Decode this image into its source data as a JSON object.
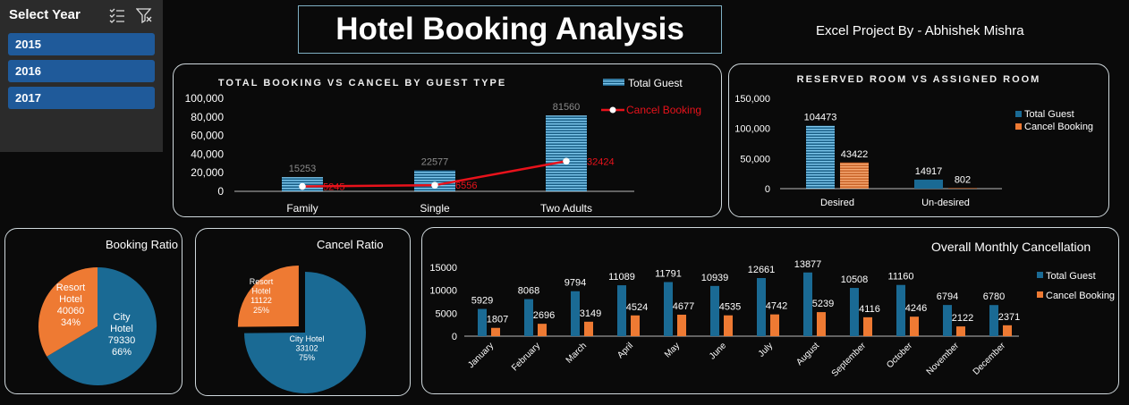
{
  "slicer": {
    "title": "Select Year",
    "years": [
      "2015",
      "2016",
      "2017"
    ]
  },
  "header": {
    "title": "Hotel Booking Analysis",
    "author": "Excel Project By -  Abhishek Mishra"
  },
  "colors": {
    "total_guest": "#1a6a94",
    "cancel_booking": "#ee7a33",
    "line": "#e8121b",
    "hatch": "#5cb8e6"
  },
  "chart_data": [
    {
      "type": "bar",
      "title": "TOTAL BOOKING VS CANCEL BY GUEST TYPE",
      "categories": [
        "Family",
        "Single",
        "Two Adults"
      ],
      "series": [
        {
          "name": "Total Guest",
          "values": [
            15253,
            22577,
            81560
          ]
        },
        {
          "name": "Cancel Booking",
          "type": "line",
          "values": [
            5245,
            6556,
            32424
          ]
        }
      ],
      "ylim": [
        0,
        100000
      ],
      "yticks": [
        "100,000",
        "80,000",
        "60,000",
        "40,000",
        "20,000",
        "0"
      ],
      "legend": "top-right"
    },
    {
      "type": "bar",
      "title": "RESERVED ROOM VS ASSIGNED ROOM",
      "categories": [
        "Desired",
        "Un-desired"
      ],
      "series": [
        {
          "name": "Total Guest",
          "values": [
            104473,
            14917
          ]
        },
        {
          "name": "Cancel Booking",
          "values": [
            43422,
            802
          ]
        }
      ],
      "ylim": [
        0,
        150000
      ],
      "yticks": [
        "150,000",
        "100,000",
        "50,000",
        "0"
      ],
      "legend": "right"
    },
    {
      "type": "pie",
      "title": "Booking Ratio",
      "slices": [
        {
          "name": "City Hotel",
          "line1": "City",
          "line2": "Hotel",
          "value": 79330,
          "pct": "66%"
        },
        {
          "name": "Resort Hotel",
          "line1": "Resort",
          "line2": "Hotel",
          "value": 40060,
          "pct": "34%"
        }
      ]
    },
    {
      "type": "pie",
      "title": "Cancel Ratio",
      "slices": [
        {
          "name": "City Hotel",
          "line1": "City Hotel",
          "line2": "",
          "value": 33102,
          "pct": "75%"
        },
        {
          "name": "Resort Hotel",
          "line1": "Resort",
          "line2": "Hotel",
          "value": 11122,
          "pct": "25%"
        }
      ]
    },
    {
      "type": "bar",
      "title": "Overall Monthly Cancellation",
      "categories": [
        "January",
        "February",
        "March",
        "April",
        "May",
        "June",
        "July",
        "August",
        "September",
        "October",
        "November",
        "December"
      ],
      "series": [
        {
          "name": "Total Guest",
          "values": [
            5929,
            8068,
            9794,
            11089,
            11791,
            10939,
            12661,
            13877,
            10508,
            11160,
            6794,
            6780
          ]
        },
        {
          "name": "Cancel Booking",
          "values": [
            1807,
            2696,
            3149,
            4524,
            4677,
            4535,
            4742,
            5239,
            4116,
            4246,
            2122,
            2371
          ]
        }
      ],
      "ylim": [
        0,
        15000
      ],
      "yticks": [
        "15000",
        "10000",
        "5000",
        "0"
      ],
      "legend": "right"
    }
  ]
}
